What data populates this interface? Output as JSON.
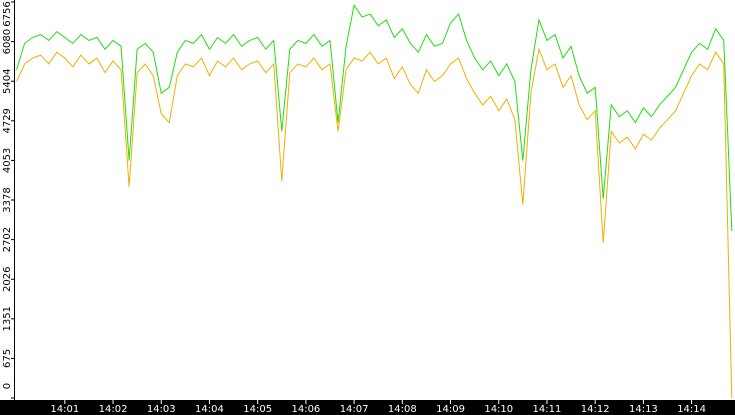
{
  "chart_data": {
    "type": "line",
    "x": [
      0,
      10,
      20,
      30,
      40,
      50,
      60,
      70,
      80,
      90,
      100,
      110,
      120,
      130,
      140,
      150,
      160,
      170,
      180,
      190,
      200,
      210,
      220,
      230,
      240,
      250,
      260,
      270,
      280,
      290,
      300,
      310,
      320,
      330,
      340,
      350,
      360,
      370,
      380,
      390,
      400,
      410,
      420,
      430,
      440,
      450,
      460,
      470,
      480,
      490,
      500,
      510,
      520,
      530,
      540,
      550,
      560,
      570,
      580,
      590,
      600,
      610,
      620,
      630,
      640,
      650,
      660,
      670,
      680,
      690,
      700,
      710,
      720,
      730,
      740,
      750,
      760,
      770,
      780,
      790,
      800,
      810,
      820,
      830,
      840,
      850,
      860,
      870,
      880,
      890
    ],
    "series": [
      {
        "color": "#22dd11",
        "values": [
          5600,
          6050,
          6150,
          6200,
          6100,
          6250,
          6150,
          6050,
          6200,
          6100,
          6150,
          5950,
          6100,
          6000,
          4050,
          5950,
          6050,
          5900,
          5200,
          5300,
          5900,
          6100,
          6050,
          6200,
          5950,
          6150,
          6050,
          6200,
          6000,
          6100,
          6150,
          5950,
          6100,
          4550,
          5950,
          6100,
          6050,
          6200,
          6000,
          6100,
          4700,
          6000,
          6700,
          6500,
          6550,
          6350,
          6450,
          6150,
          6300,
          6050,
          5900,
          6200,
          6000,
          6050,
          6400,
          6550,
          6100,
          5800,
          5600,
          5750,
          5500,
          5700,
          5400,
          4050,
          5600,
          6450,
          6100,
          6200,
          5800,
          6000,
          5500,
          5200,
          5300,
          3400,
          5000,
          4800,
          4900,
          4700,
          4950,
          4800,
          5000,
          5150,
          5300,
          5600,
          5900,
          6050,
          5950,
          6300,
          6100,
          2850
        ]
      },
      {
        "color": "#f0b000",
        "values": [
          5400,
          5700,
          5800,
          5850,
          5700,
          5900,
          5800,
          5650,
          5850,
          5700,
          5800,
          5550,
          5750,
          5600,
          3600,
          5550,
          5700,
          5500,
          4850,
          4700,
          5500,
          5700,
          5650,
          5800,
          5500,
          5750,
          5650,
          5800,
          5600,
          5700,
          5750,
          5550,
          5700,
          3700,
          5550,
          5700,
          5650,
          5800,
          5600,
          5700,
          4550,
          5600,
          5800,
          5750,
          5900,
          5700,
          5800,
          5450,
          5650,
          5350,
          5200,
          5600,
          5400,
          5500,
          5700,
          5800,
          5450,
          5200,
          5000,
          5150,
          4900,
          5100,
          4750,
          3300,
          5200,
          5950,
          5600,
          5700,
          5300,
          5500,
          5000,
          4750,
          4900,
          2650,
          4550,
          4350,
          4450,
          4250,
          4500,
          4400,
          4600,
          4750,
          4900,
          5200,
          5500,
          5700,
          5600,
          5900,
          5700,
          0
        ]
      }
    ],
    "xlim": [
      -2,
      894
    ],
    "xticks": [
      {
        "value": 60,
        "label": "14:01"
      },
      {
        "value": 120,
        "label": "14:02"
      },
      {
        "value": 180,
        "label": "14:03"
      },
      {
        "value": 240,
        "label": "14:04"
      },
      {
        "value": 300,
        "label": "14:05"
      },
      {
        "value": 360,
        "label": "14:06"
      },
      {
        "value": 420,
        "label": "14:07"
      },
      {
        "value": 480,
        "label": "14:08"
      },
      {
        "value": 540,
        "label": "14:09"
      },
      {
        "value": 600,
        "label": "14:10"
      },
      {
        "value": 660,
        "label": "14:11"
      },
      {
        "value": 720,
        "label": "14:12"
      },
      {
        "value": 780,
        "label": "14:13"
      },
      {
        "value": 840,
        "label": "14:14"
      }
    ],
    "ylim": [
      0,
      6756
    ],
    "yticks": [
      0,
      675,
      1351,
      2026,
      2702,
      3378,
      4053,
      4729,
      5404,
      6080,
      6756
    ]
  }
}
